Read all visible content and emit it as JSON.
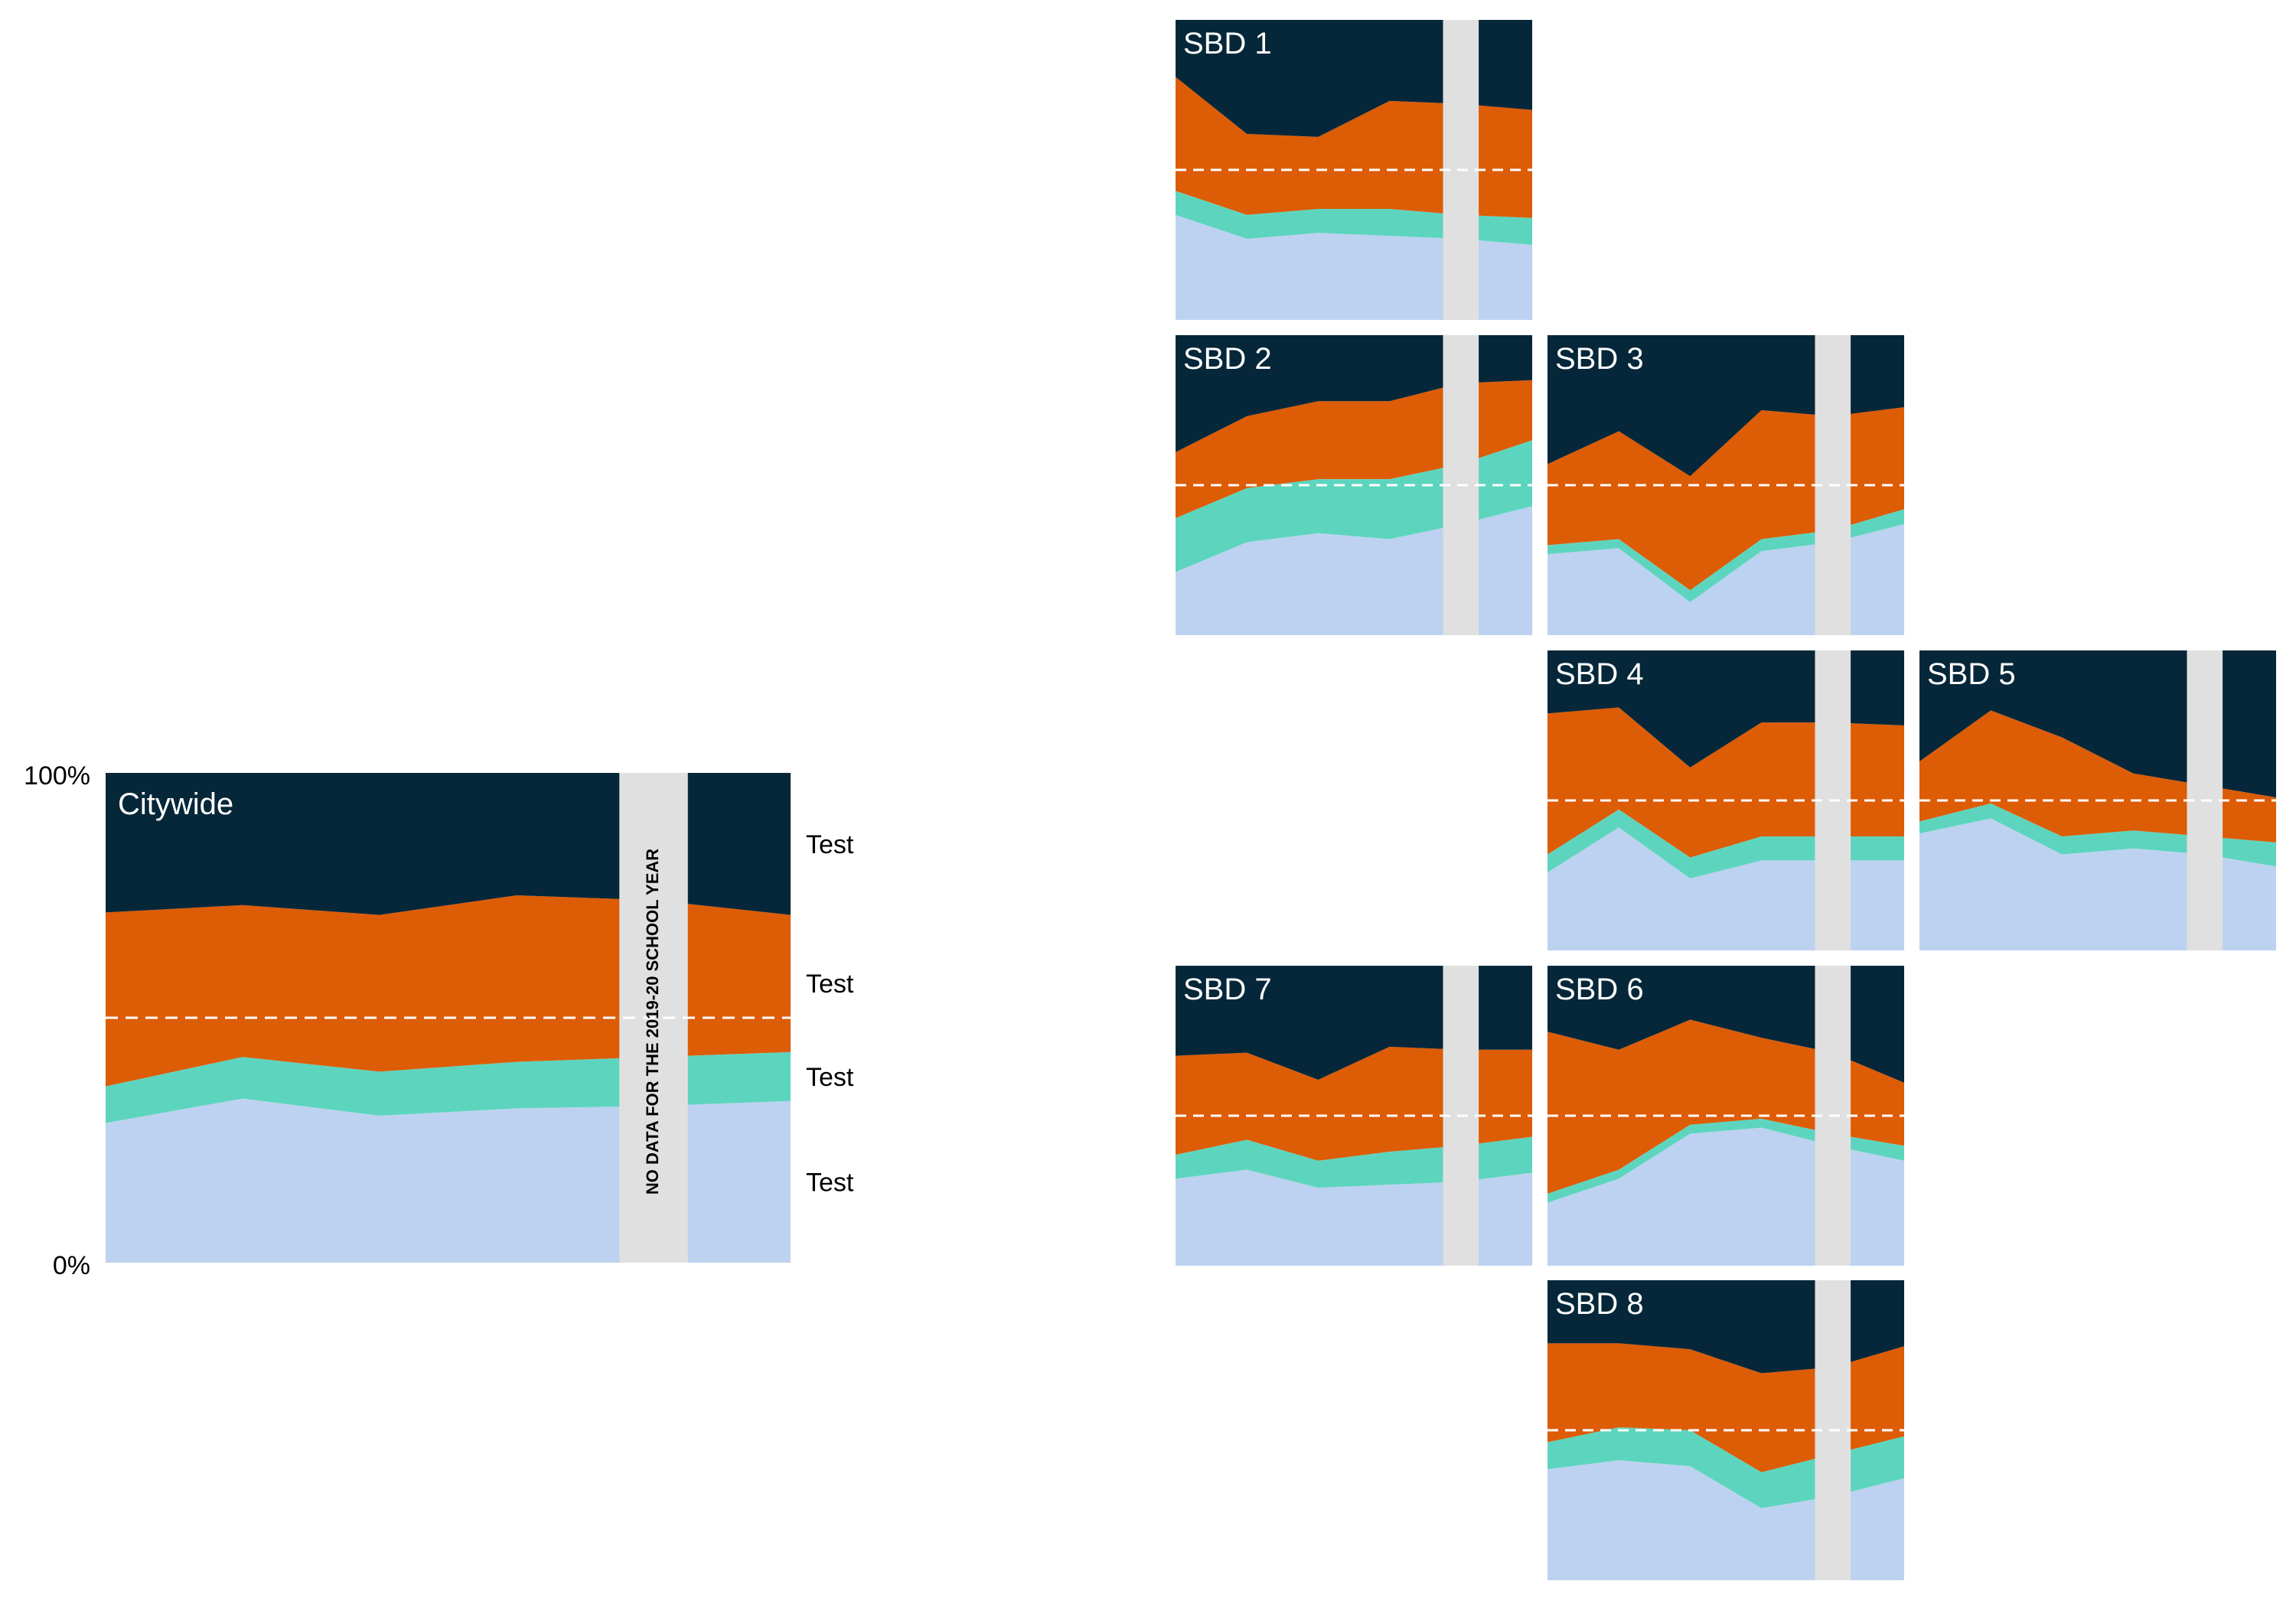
{
  "colors": {
    "layer1": "#bdd2f0",
    "layer2": "#5dd5be",
    "layer3": "#dd5c06",
    "layer4": "#052739",
    "gap": "#e0e0e0",
    "dashed": "#ffffff",
    "panel_title": "#ffffff",
    "axis_text": "#000000"
  },
  "chart_data": [
    {
      "name": "Citywide",
      "type": "area",
      "stacked": true,
      "unit": "percent",
      "ylim": [
        0,
        100
      ],
      "yticks": [
        "0%",
        "100%"
      ],
      "x_points": 6,
      "gap_label": "NO DATA FOR THE 2019-20 SCHOOL YEAR",
      "reference": 50,
      "series_labels": [
        "Test",
        "Test",
        "Test",
        "Test"
      ],
      "series": [
        {
          "values": [
            28.5,
            33.5,
            30,
            31.5,
            32,
            33
          ]
        },
        {
          "values": [
            7.5,
            8.5,
            9,
            9.5,
            10,
            10
          ]
        },
        {
          "values": [
            35.5,
            31,
            32,
            34,
            32,
            28
          ]
        },
        {
          "values": [
            28.5,
            27,
            29,
            25,
            26,
            29
          ]
        }
      ]
    },
    {
      "name": "SBD 1",
      "type": "area",
      "stacked": true,
      "ylim": [
        0,
        100
      ],
      "reference": 50,
      "series": [
        {
          "values": [
            35,
            27,
            29,
            28,
            27,
            25
          ]
        },
        {
          "values": [
            8,
            8,
            8,
            9,
            8,
            9
          ]
        },
        {
          "values": [
            38,
            27,
            24,
            36,
            37,
            36
          ]
        },
        {
          "values": [
            19,
            38,
            39,
            27,
            28,
            30
          ]
        }
      ]
    },
    {
      "name": "SBD 2",
      "type": "area",
      "stacked": true,
      "ylim": [
        0,
        100
      ],
      "reference": 50,
      "series": [
        {
          "values": [
            21,
            31,
            34,
            32,
            37,
            43
          ]
        },
        {
          "values": [
            18,
            18,
            18,
            20,
            20,
            22
          ]
        },
        {
          "values": [
            22,
            24,
            26,
            26,
            27,
            20
          ]
        },
        {
          "values": [
            39,
            27,
            22,
            22,
            16,
            15
          ]
        }
      ]
    },
    {
      "name": "SBD 3",
      "type": "area",
      "stacked": true,
      "ylim": [
        0,
        100
      ],
      "reference": 50,
      "series": [
        {
          "values": [
            27,
            29,
            11,
            28,
            31,
            37
          ]
        },
        {
          "values": [
            3,
            3,
            4,
            4,
            4,
            5
          ]
        },
        {
          "values": [
            27,
            36,
            38,
            43,
            38,
            34
          ]
        },
        {
          "values": [
            43,
            32,
            47,
            25,
            27,
            24
          ]
        }
      ]
    },
    {
      "name": "SBD 4",
      "type": "area",
      "stacked": true,
      "ylim": [
        0,
        100
      ],
      "reference": 50,
      "series": [
        {
          "values": [
            26,
            41,
            24,
            30,
            30,
            30
          ]
        },
        {
          "values": [
            6,
            6,
            7,
            8,
            8,
            8
          ]
        },
        {
          "values": [
            47,
            34,
            30,
            38,
            38,
            37
          ]
        },
        {
          "values": [
            21,
            19,
            39,
            24,
            24,
            25
          ]
        }
      ]
    },
    {
      "name": "SBD 5",
      "type": "area",
      "stacked": true,
      "ylim": [
        0,
        100
      ],
      "reference": 50,
      "series": [
        {
          "values": [
            39,
            44,
            32,
            34,
            32,
            28
          ]
        },
        {
          "values": [
            4,
            5,
            6,
            6,
            6,
            8
          ]
        },
        {
          "values": [
            20,
            31,
            33,
            19,
            17,
            15
          ]
        },
        {
          "values": [
            37,
            20,
            29,
            41,
            45,
            49
          ]
        }
      ]
    },
    {
      "name": "SBD 7",
      "type": "area",
      "stacked": true,
      "ylim": [
        0,
        100
      ],
      "reference": 50,
      "series": [
        {
          "values": [
            29,
            32,
            26,
            27,
            28,
            31
          ]
        },
        {
          "values": [
            8,
            10,
            9,
            11,
            12,
            12
          ]
        },
        {
          "values": [
            33,
            29,
            27,
            35,
            32,
            29
          ]
        },
        {
          "values": [
            30,
            29,
            38,
            27,
            28,
            28
          ]
        }
      ]
    },
    {
      "name": "SBD 6",
      "type": "area",
      "stacked": true,
      "ylim": [
        0,
        100
      ],
      "reference": 50,
      "series": [
        {
          "values": [
            21,
            29,
            44,
            46,
            40,
            35
          ]
        },
        {
          "values": [
            3,
            3,
            3,
            3,
            4,
            5
          ]
        },
        {
          "values": [
            54,
            40,
            35,
            27,
            27,
            21
          ]
        },
        {
          "values": [
            22,
            28,
            18,
            24,
            29,
            39
          ]
        }
      ]
    },
    {
      "name": "SBD 8",
      "type": "area",
      "stacked": true,
      "ylim": [
        0,
        100
      ],
      "reference": 50,
      "series": [
        {
          "values": [
            37,
            40,
            38,
            24,
            28,
            34
          ]
        },
        {
          "values": [
            9,
            11,
            12,
            12,
            14,
            14
          ]
        },
        {
          "values": [
            33,
            28,
            27,
            33,
            29,
            30
          ]
        },
        {
          "values": [
            21,
            21,
            23,
            31,
            29,
            22
          ]
        }
      ]
    }
  ]
}
